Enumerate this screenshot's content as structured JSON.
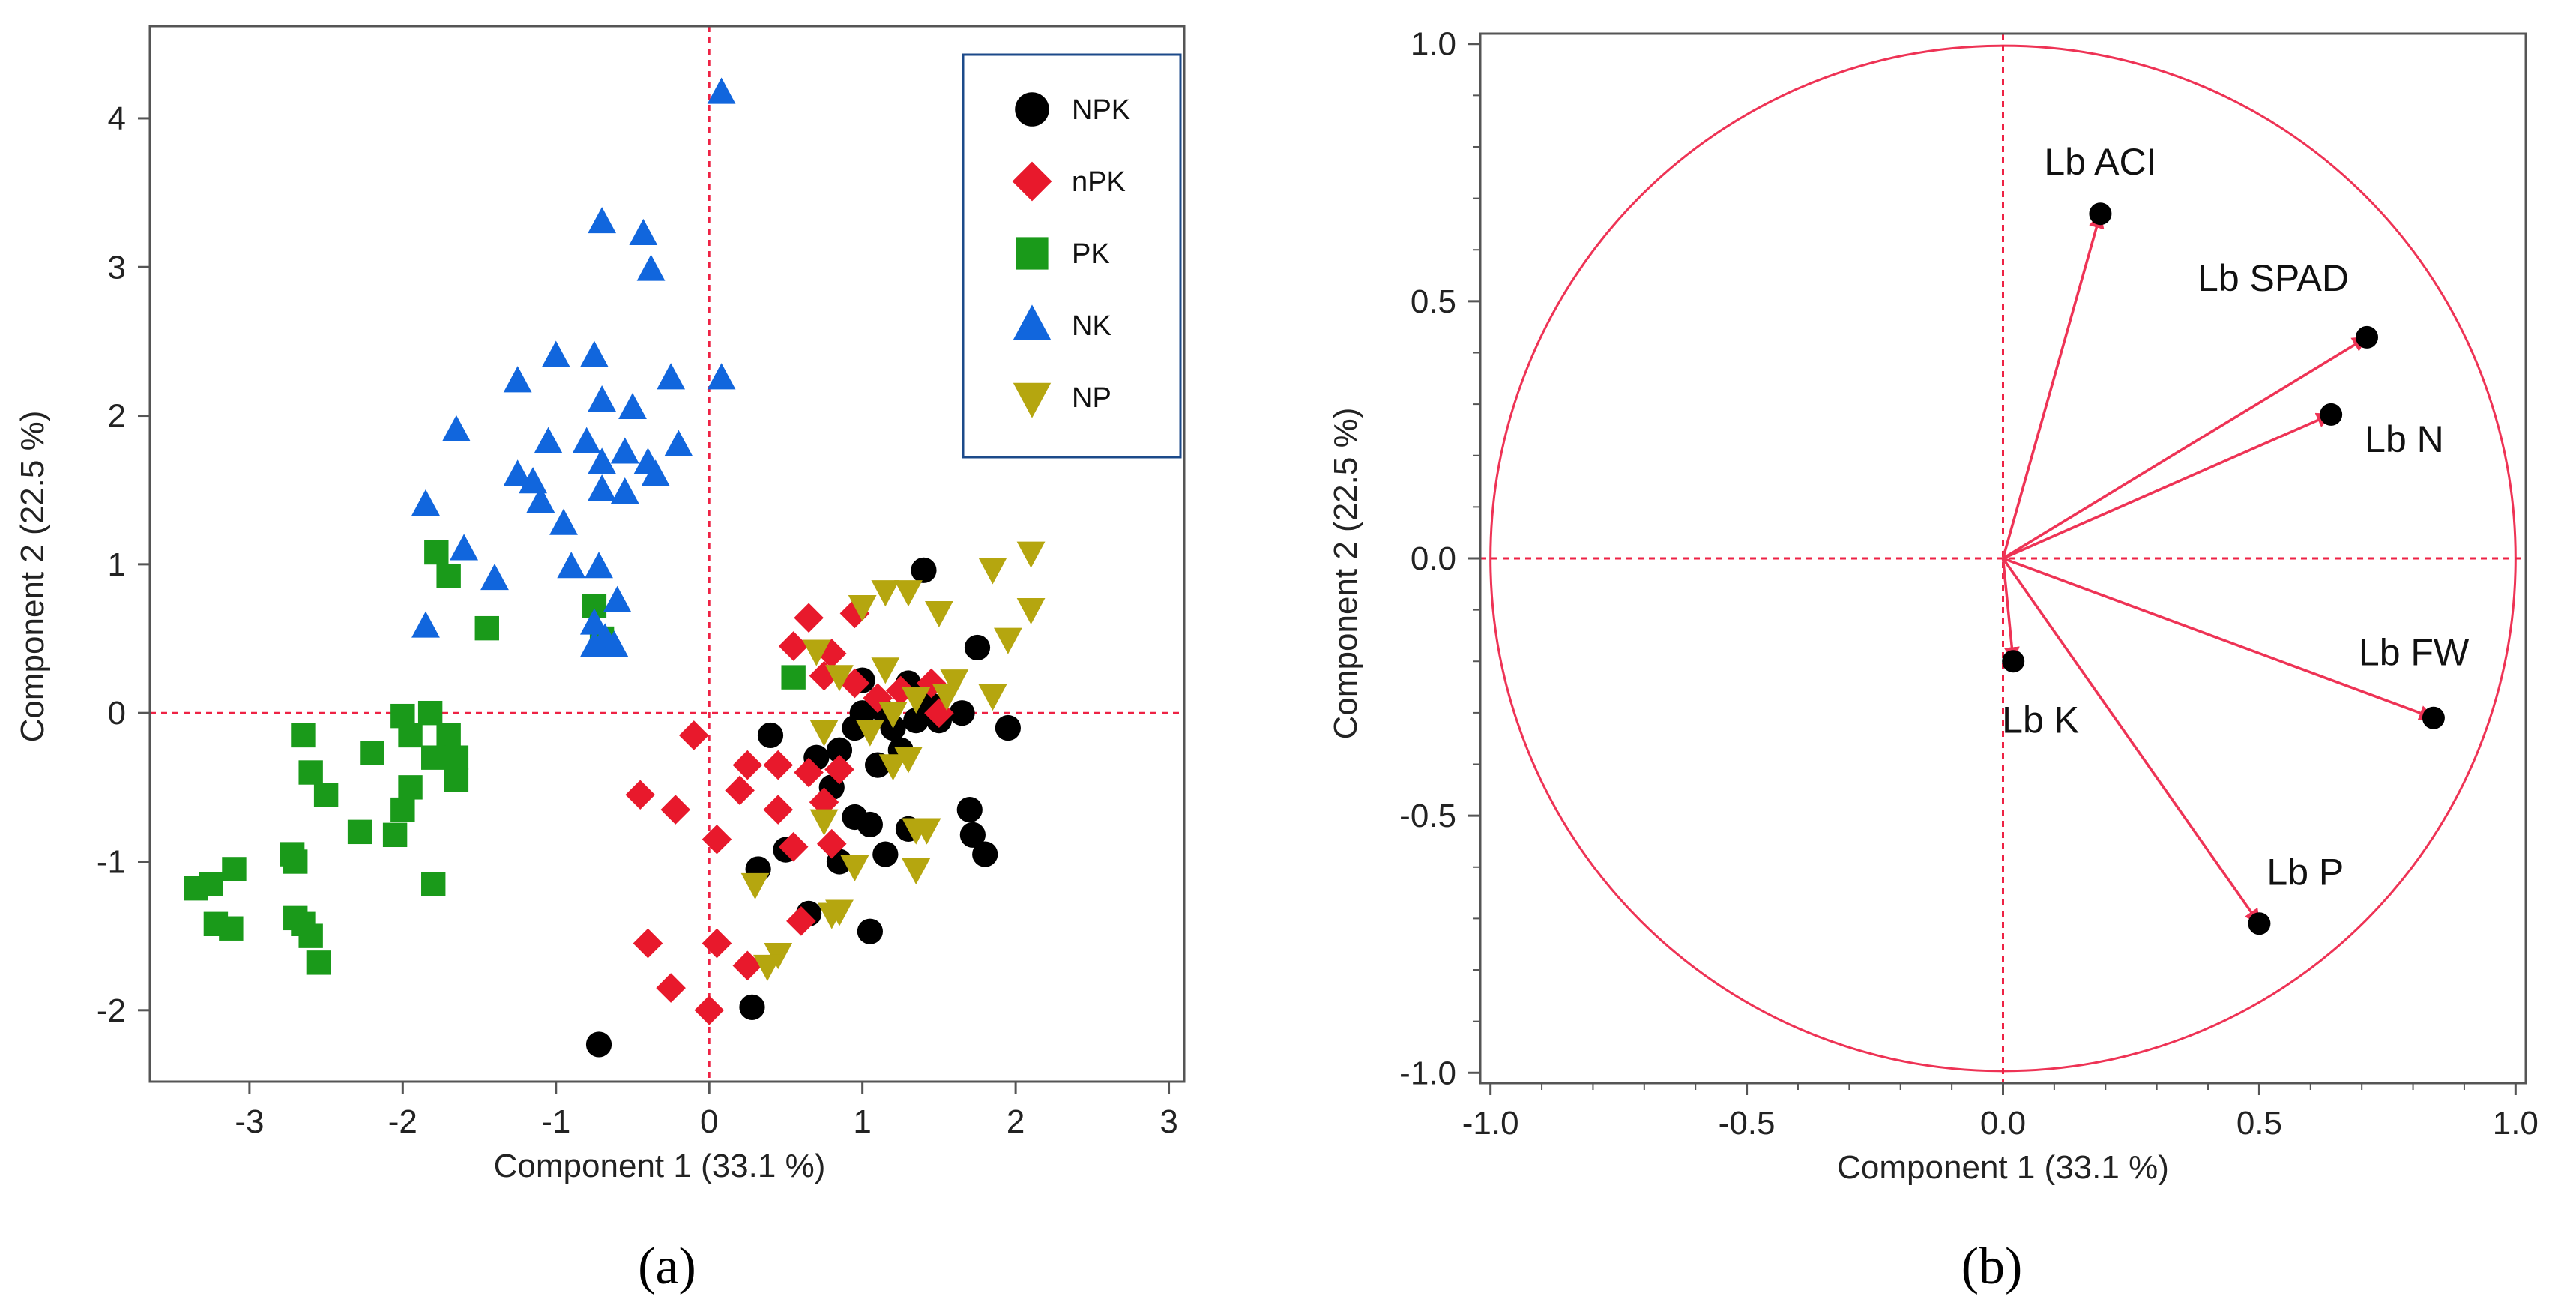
{
  "colors": {
    "NPK": "#000000",
    "nPK": "#e8192c",
    "PK": "#1a9a1a",
    "NK": "#1166dd",
    "NP": "#b5a60f",
    "reference_line": "#ee2244",
    "circle": "#ee3355",
    "arrow": "#ee3355",
    "legend_border": "#1c4a8a"
  },
  "chart_data": [
    {
      "type": "scatter",
      "panel_label": "(a)",
      "xlabel": "Component 1  (33.1 %)",
      "ylabel": "Component 2  (22.5 %)",
      "xlim": [
        -3.65,
        3.1
      ],
      "ylim": [
        -2.48,
        4.62
      ],
      "x_ticks": [
        -3,
        -2,
        -1,
        0,
        1,
        2,
        3
      ],
      "x_tick_labels": [
        "-3",
        "-2",
        "-1",
        "0",
        "1",
        "2",
        "3"
      ],
      "y_ticks": [
        -2,
        -1,
        0,
        1,
        2,
        3,
        4
      ],
      "y_tick_labels": [
        "-2",
        "-1",
        "0",
        "1",
        "2",
        "3",
        "4"
      ],
      "reference_lines": {
        "x": 0,
        "y": 0
      },
      "legend_position": "top-right",
      "series": [
        {
          "name": "NPK",
          "marker": "circle",
          "points": [
            [
              1.4,
              0.96
            ],
            [
              1.75,
              0.44
            ],
            [
              1.95,
              -0.1
            ],
            [
              1.3,
              0.2
            ],
            [
              1.0,
              0.22
            ],
            [
              1.0,
              0.0
            ],
            [
              1.15,
              0.0
            ],
            [
              1.45,
              0.05
            ],
            [
              1.65,
              0.0
            ],
            [
              1.5,
              -0.05
            ],
            [
              1.35,
              -0.05
            ],
            [
              1.2,
              -0.1
            ],
            [
              1.25,
              -0.25
            ],
            [
              1.1,
              -0.35
            ],
            [
              0.95,
              -0.1
            ],
            [
              0.85,
              -0.25
            ],
            [
              0.7,
              -0.3
            ],
            [
              0.8,
              -0.5
            ],
            [
              0.4,
              -0.15
            ],
            [
              0.95,
              -0.7
            ],
            [
              1.05,
              -0.75
            ],
            [
              1.3,
              -0.78
            ],
            [
              1.7,
              -0.65
            ],
            [
              1.72,
              -0.82
            ],
            [
              1.8,
              -0.95
            ],
            [
              1.15,
              -0.95
            ],
            [
              0.85,
              -1.0
            ],
            [
              0.5,
              -0.92
            ],
            [
              0.32,
              -1.05
            ],
            [
              0.65,
              -1.35
            ],
            [
              1.05,
              -1.47
            ],
            [
              0.28,
              -1.98
            ],
            [
              -0.72,
              -2.23
            ]
          ]
        },
        {
          "name": "nPK",
          "marker": "diamond",
          "points": [
            [
              0.65,
              0.64
            ],
            [
              0.95,
              0.67
            ],
            [
              0.55,
              0.45
            ],
            [
              0.8,
              0.4
            ],
            [
              0.75,
              0.25
            ],
            [
              0.95,
              0.2
            ],
            [
              1.45,
              0.2
            ],
            [
              1.5,
              0.0
            ],
            [
              1.25,
              0.15
            ],
            [
              1.1,
              0.1
            ],
            [
              -0.1,
              -0.15
            ],
            [
              0.25,
              -0.35
            ],
            [
              0.45,
              -0.35
            ],
            [
              0.85,
              -0.38
            ],
            [
              0.65,
              -0.4
            ],
            [
              0.2,
              -0.52
            ],
            [
              0.75,
              -0.6
            ],
            [
              0.45,
              -0.65
            ],
            [
              -0.45,
              -0.55
            ],
            [
              -0.22,
              -0.65
            ],
            [
              0.05,
              -0.85
            ],
            [
              0.55,
              -0.9
            ],
            [
              0.8,
              -0.88
            ],
            [
              0.6,
              -1.4
            ],
            [
              -0.4,
              -1.55
            ],
            [
              0.05,
              -1.55
            ],
            [
              0.25,
              -1.7
            ],
            [
              -0.25,
              -1.85
            ],
            [
              0.0,
              -2.0
            ]
          ]
        },
        {
          "name": "PK",
          "marker": "square",
          "points": [
            [
              -1.78,
              1.08
            ],
            [
              -1.7,
              0.92
            ],
            [
              -1.45,
              0.57
            ],
            [
              -0.75,
              0.72
            ],
            [
              -0.7,
              0.5
            ],
            [
              0.55,
              0.24
            ],
            [
              -2.0,
              -0.02
            ],
            [
              -1.82,
              0.0
            ],
            [
              -2.65,
              -0.15
            ],
            [
              -1.95,
              -0.15
            ],
            [
              -1.7,
              -0.15
            ],
            [
              -1.65,
              -0.3
            ],
            [
              -1.8,
              -0.3
            ],
            [
              -2.2,
              -0.27
            ],
            [
              -2.6,
              -0.4
            ],
            [
              -1.65,
              -0.45
            ],
            [
              -2.5,
              -0.55
            ],
            [
              -1.95,
              -0.5
            ],
            [
              -2.0,
              -0.65
            ],
            [
              -2.28,
              -0.8
            ],
            [
              -2.05,
              -0.82
            ],
            [
              -2.72,
              -0.95
            ],
            [
              -2.7,
              -1.0
            ],
            [
              -3.1,
              -1.05
            ],
            [
              -1.8,
              -1.15
            ],
            [
              -3.25,
              -1.15
            ],
            [
              -3.35,
              -1.18
            ],
            [
              -2.7,
              -1.38
            ],
            [
              -2.65,
              -1.42
            ],
            [
              -3.22,
              -1.42
            ],
            [
              -3.12,
              -1.45
            ],
            [
              -2.6,
              -1.5
            ],
            [
              -2.55,
              -1.68
            ]
          ]
        },
        {
          "name": "NK",
          "marker": "triangle-up",
          "points": [
            [
              0.08,
              4.17
            ],
            [
              -0.7,
              3.3
            ],
            [
              -0.43,
              3.22
            ],
            [
              -0.38,
              2.98
            ],
            [
              -1.0,
              2.4
            ],
            [
              -0.75,
              2.4
            ],
            [
              -1.25,
              2.23
            ],
            [
              -0.25,
              2.25
            ],
            [
              0.08,
              2.25
            ],
            [
              -0.7,
              2.1
            ],
            [
              -0.5,
              2.05
            ],
            [
              -1.65,
              1.9
            ],
            [
              -1.05,
              1.82
            ],
            [
              -0.8,
              1.82
            ],
            [
              -0.55,
              1.75
            ],
            [
              -0.2,
              1.8
            ],
            [
              -0.7,
              1.68
            ],
            [
              -0.4,
              1.68
            ],
            [
              -0.35,
              1.6
            ],
            [
              -1.25,
              1.6
            ],
            [
              -1.15,
              1.55
            ],
            [
              -0.7,
              1.5
            ],
            [
              -0.55,
              1.48
            ],
            [
              -1.85,
              1.4
            ],
            [
              -1.1,
              1.42
            ],
            [
              -0.95,
              1.27
            ],
            [
              -1.6,
              1.1
            ],
            [
              -1.4,
              0.9
            ],
            [
              -0.9,
              0.98
            ],
            [
              -0.72,
              0.98
            ],
            [
              -0.6,
              0.75
            ],
            [
              -0.75,
              0.6
            ],
            [
              -1.85,
              0.58
            ],
            [
              -0.68,
              0.5
            ],
            [
              -0.62,
              0.45
            ],
            [
              -0.75,
              0.45
            ]
          ]
        },
        {
          "name": "NP",
          "marker": "triangle-down",
          "points": [
            [
              2.1,
              1.08
            ],
            [
              1.85,
              0.97
            ],
            [
              2.1,
              0.7
            ],
            [
              1.15,
              0.82
            ],
            [
              1.3,
              0.82
            ],
            [
              1.0,
              0.72
            ],
            [
              1.5,
              0.68
            ],
            [
              1.95,
              0.5
            ],
            [
              0.7,
              0.42
            ],
            [
              0.85,
              0.25
            ],
            [
              1.15,
              0.3
            ],
            [
              1.6,
              0.22
            ],
            [
              1.55,
              0.12
            ],
            [
              1.85,
              0.12
            ],
            [
              1.35,
              0.1
            ],
            [
              1.2,
              0.0
            ],
            [
              0.75,
              -0.12
            ],
            [
              1.05,
              -0.12
            ],
            [
              1.2,
              -0.35
            ],
            [
              1.3,
              -0.3
            ],
            [
              0.75,
              -0.72
            ],
            [
              1.35,
              -0.78
            ],
            [
              1.42,
              -0.78
            ],
            [
              0.95,
              -1.03
            ],
            [
              1.35,
              -1.05
            ],
            [
              0.3,
              -1.15
            ],
            [
              0.85,
              -1.33
            ],
            [
              0.8,
              -1.35
            ],
            [
              0.45,
              -1.62
            ],
            [
              0.38,
              -1.7
            ]
          ]
        }
      ]
    },
    {
      "type": "scatter",
      "subtype": "correlation-circle",
      "panel_label": "(b)",
      "xlabel": "Component 1  (33.1 %)",
      "ylabel": "Component 2  (22.5 %)",
      "xlim": [
        -1.0,
        1.0
      ],
      "ylim": [
        -1.0,
        1.0
      ],
      "x_ticks": [
        -1.0,
        -0.5,
        0.0,
        0.5,
        1.0
      ],
      "x_tick_labels": [
        "-1.0",
        "-0.5",
        "0.0",
        "0.5",
        "1.0"
      ],
      "y_ticks": [
        -1.0,
        -0.5,
        0.0,
        0.5,
        1.0
      ],
      "y_tick_labels": [
        "-1.0",
        "-0.5",
        "0.0",
        "0.5",
        "1.0"
      ],
      "reference_lines": {
        "x": 0,
        "y": 0
      },
      "circle_radius": 1.0,
      "vectors": [
        {
          "name": "Lb ACI",
          "x": 0.19,
          "y": 0.67
        },
        {
          "name": "Lb SPAD",
          "x": 0.71,
          "y": 0.43
        },
        {
          "name": "Lb N",
          "x": 0.64,
          "y": 0.28
        },
        {
          "name": "Lb FW",
          "x": 0.84,
          "y": -0.31
        },
        {
          "name": "Lb K",
          "x": 0.02,
          "y": -0.2
        },
        {
          "name": "Lb P",
          "x": 0.5,
          "y": -0.71
        }
      ]
    }
  ]
}
